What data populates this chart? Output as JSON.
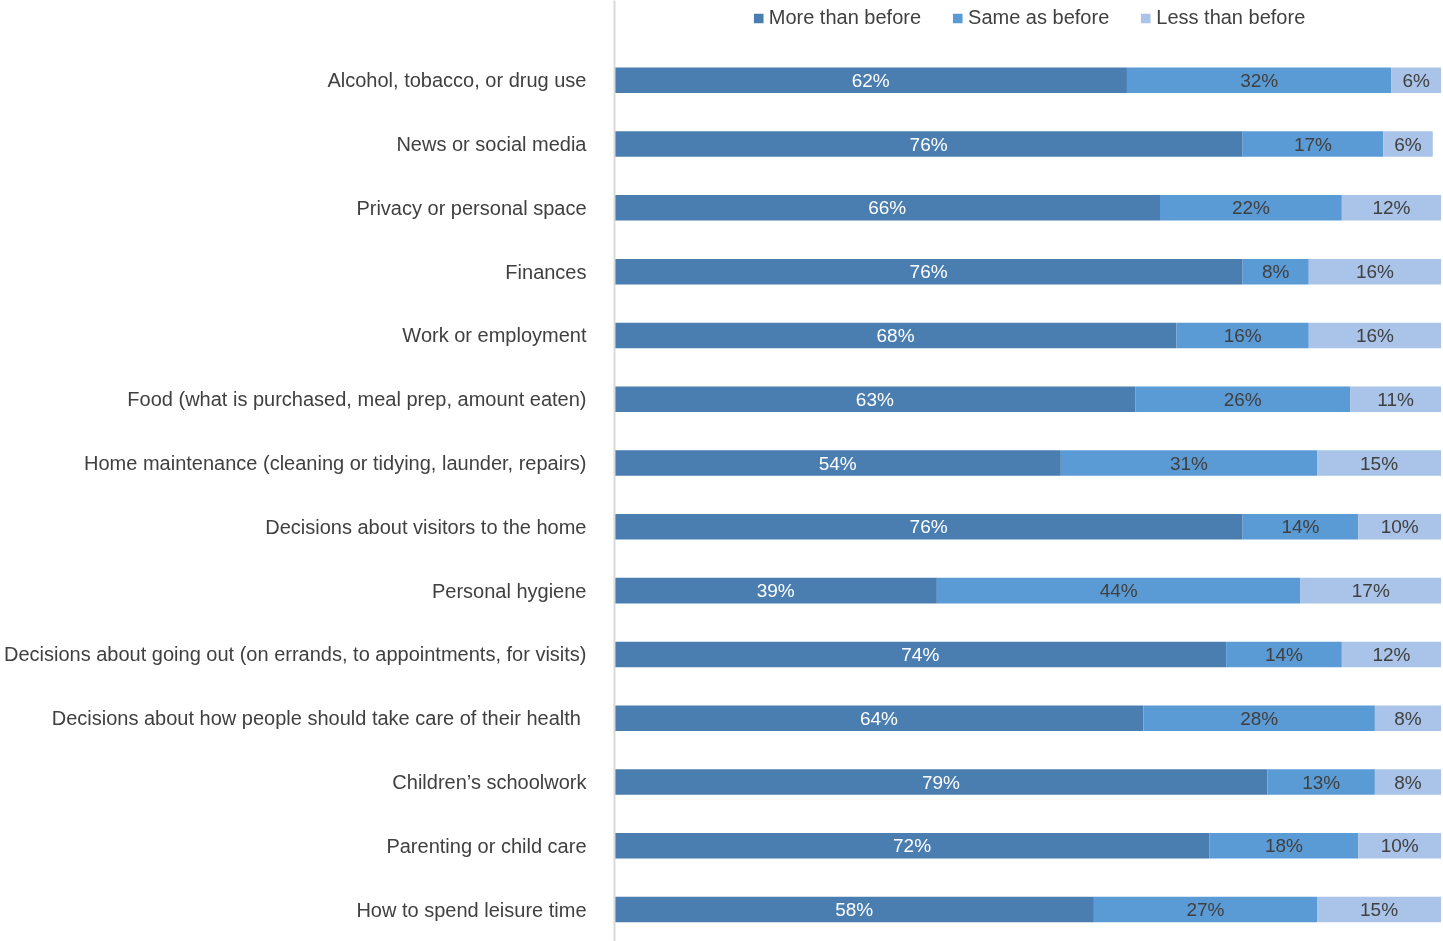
{
  "chart_data": {
    "type": "bar",
    "orientation": "horizontal",
    "stacked": true,
    "legend": "top",
    "grid": false,
    "tick_labels": "y",
    "categories": [
      "Alcohol, tobacco, or drug use",
      "News or social media",
      "Privacy or personal space",
      "Finances",
      "Work or employment",
      "Food (what is purchased, meal prep, amount eaten)",
      "Home maintenance (cleaning or tidying, launder, repairs)",
      "Decisions about visitors to the home",
      "Personal hygiene",
      "Decisions about going out (on errands, to appointments, for visits)",
      "Decisions about how people should  take care of their health",
      "Children’s schoolwork",
      "Parenting or child care",
      "How to spend leisure time"
    ],
    "series": [
      {
        "name": "More than before",
        "color": "#4a7db0",
        "values": [
          62,
          76,
          66,
          76,
          68,
          63,
          54,
          76,
          39,
          74,
          64,
          79,
          72,
          58
        ],
        "value_labels": [
          "62%",
          "76%",
          "66%",
          "76%",
          "68%",
          "63%",
          "54%",
          "76%",
          "39%",
          "74%",
          "64%",
          "79%",
          "72%",
          "58%"
        ]
      },
      {
        "name": "Same as before",
        "color": "#5b9bd5",
        "values": [
          32,
          17,
          22,
          8,
          16,
          26,
          31,
          14,
          44,
          14,
          28,
          13,
          18,
          27
        ],
        "value_labels": [
          "32%",
          "17%",
          "22%",
          "8%",
          "16%",
          "26%",
          "31%",
          "14%",
          "44%",
          "14%",
          "28%",
          "13%",
          "18%",
          "27%"
        ]
      },
      {
        "name": "Less than before",
        "color": "#a9c4e8",
        "values": [
          6,
          6,
          12,
          16,
          16,
          11,
          15,
          10,
          17,
          12,
          8,
          8,
          10,
          15
        ],
        "value_labels": [
          "6%",
          "6%",
          "12%",
          "16%",
          "16%",
          "11%",
          "15%",
          "10%",
          "17%",
          "12%",
          "8%",
          "8%",
          "10%",
          "15%"
        ]
      }
    ]
  }
}
